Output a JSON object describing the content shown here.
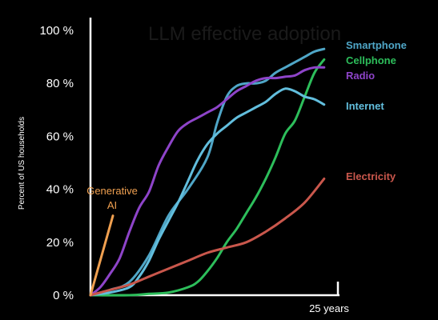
{
  "chart_data": {
    "type": "line",
    "title": "",
    "watermark_text": "LLM effective adoption",
    "ylabel": "Percent of US households",
    "xlabel": "",
    "x_end_label": "25 years",
    "xlim": [
      0,
      25
    ],
    "ylim": [
      0,
      100
    ],
    "yticks": [
      {
        "value": 0,
        "label": "0 %"
      },
      {
        "value": 20,
        "label": "20 %"
      },
      {
        "value": 40,
        "label": "40 %"
      },
      {
        "value": 60,
        "label": "60 %"
      },
      {
        "value": 80,
        "label": "80 %"
      },
      {
        "value": 100,
        "label": "100 %"
      }
    ],
    "grid": false,
    "legend": "inline-right",
    "series": [
      {
        "name": "Smartphone",
        "color": "#4FA6C7",
        "x": [
          0,
          2,
          4,
          6,
          8,
          10,
          12,
          13,
          14,
          15,
          16,
          17,
          18,
          19,
          20,
          21,
          22,
          23,
          24
        ],
        "y": [
          0,
          2,
          5,
          15,
          30,
          40,
          52,
          65,
          75,
          79,
          80,
          80,
          81,
          84,
          86,
          88,
          90,
          92,
          93
        ]
      },
      {
        "name": "Cellphone",
        "color": "#2DBE5B",
        "x": [
          0,
          4,
          6,
          8,
          10,
          11,
          12,
          13,
          14,
          15,
          16,
          17,
          18,
          19,
          20,
          21,
          22,
          23,
          24
        ],
        "y": [
          0,
          0,
          0.5,
          1,
          3,
          5,
          9,
          14,
          20,
          25,
          31,
          37,
          44,
          52,
          61,
          66,
          75,
          84,
          89
        ]
      },
      {
        "name": "Radio",
        "color": "#8E44C9",
        "x": [
          0,
          1,
          2,
          3,
          4,
          5,
          6,
          7,
          8,
          9,
          10,
          11,
          12,
          13,
          14,
          15,
          16,
          17,
          18,
          19,
          20,
          21,
          22,
          23,
          24
        ],
        "y": [
          0,
          3,
          8,
          14,
          24,
          33,
          39,
          49,
          56,
          62,
          65,
          67,
          69,
          71,
          74,
          77,
          79,
          81,
          82,
          82,
          82.5,
          83,
          85,
          86,
          86
        ]
      },
      {
        "name": "Internet",
        "color": "#62BEDD",
        "x": [
          0,
          2,
          4,
          5,
          6,
          7,
          8,
          9,
          10,
          11,
          12,
          13,
          14,
          15,
          16,
          17,
          18,
          19,
          20,
          21,
          22,
          23,
          24
        ],
        "y": [
          0,
          1,
          3,
          7,
          13,
          21,
          28,
          35,
          43,
          51,
          57,
          61,
          64,
          67,
          69,
          71,
          73,
          76,
          78,
          77,
          75,
          74,
          72
        ]
      },
      {
        "name": "Electricity",
        "color": "#C9574C",
        "x": [
          0,
          2,
          4,
          6,
          8,
          10,
          12,
          14,
          16,
          18,
          20,
          22,
          24
        ],
        "y": [
          0,
          2,
          4,
          7,
          10,
          13,
          16,
          18,
          20,
          24,
          29,
          35,
          44
        ]
      },
      {
        "name": "Generative AI",
        "label_lines": [
          "Generative",
          "AI"
        ],
        "color": "#F0A050",
        "x": [
          0,
          2.3
        ],
        "y": [
          0,
          30
        ]
      }
    ]
  }
}
